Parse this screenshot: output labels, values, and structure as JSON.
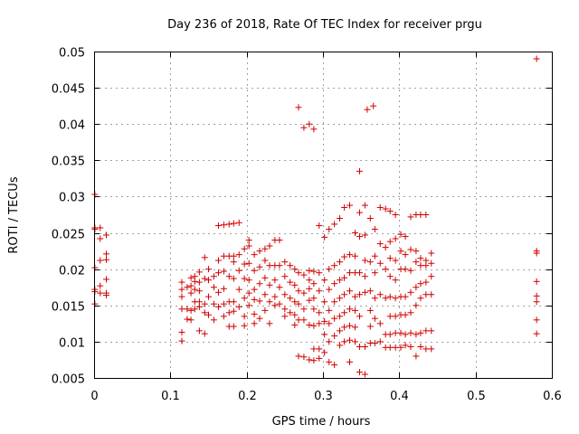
{
  "chart_data": {
    "type": "scatter",
    "title": "Day 236 of 2018, Rate Of TEC Index for receiver prgu",
    "xlabel": "GPS time / hours",
    "ylabel": "ROTI / TECUs",
    "xlim": [
      0,
      0.6
    ],
    "ylim": [
      0.005,
      0.05
    ],
    "xticks": [
      0,
      0.1,
      0.2,
      0.3,
      0.4,
      0.5,
      0.6
    ],
    "xtick_labels": [
      "0",
      "0.1",
      "0.2",
      "0.3",
      "0.4",
      "0.5",
      "0.6"
    ],
    "yticks": [
      0.005,
      0.01,
      0.015,
      0.02,
      0.025,
      0.03,
      0.035,
      0.04,
      0.045,
      0.05
    ],
    "ytick_labels": [
      "0.005",
      "0.01",
      "0.015",
      "0.02",
      "0.025",
      "0.03",
      "0.035",
      "0.04",
      "0.045",
      "0.05"
    ],
    "grid": true,
    "marker": "+",
    "series_color": "#d00000",
    "points": [
      [
        0.001,
        0.0303
      ],
      [
        0.001,
        0.0257
      ],
      [
        0.001,
        0.0255
      ],
      [
        0.001,
        0.0202
      ],
      [
        0.001,
        0.0172
      ],
      [
        0.001,
        0.0169
      ],
      [
        0.001,
        0.0152
      ],
      [
        0.008,
        0.0257
      ],
      [
        0.008,
        0.0242
      ],
      [
        0.008,
        0.0212
      ],
      [
        0.008,
        0.0177
      ],
      [
        0.008,
        0.0167
      ],
      [
        0.016,
        0.0247
      ],
      [
        0.016,
        0.0221
      ],
      [
        0.016,
        0.0213
      ],
      [
        0.016,
        0.0186
      ],
      [
        0.016,
        0.0167
      ],
      [
        0.016,
        0.0164
      ],
      [
        0.115,
        0.0182
      ],
      [
        0.115,
        0.0172
      ],
      [
        0.115,
        0.0162
      ],
      [
        0.115,
        0.0145
      ],
      [
        0.115,
        0.0113
      ],
      [
        0.115,
        0.0101
      ],
      [
        0.122,
        0.0175
      ],
      [
        0.122,
        0.0145
      ],
      [
        0.122,
        0.0131
      ],
      [
        0.127,
        0.0188
      ],
      [
        0.127,
        0.0177
      ],
      [
        0.127,
        0.0167
      ],
      [
        0.127,
        0.0143
      ],
      [
        0.127,
        0.013
      ],
      [
        0.132,
        0.019
      ],
      [
        0.132,
        0.0183
      ],
      [
        0.132,
        0.0172
      ],
      [
        0.132,
        0.0155
      ],
      [
        0.132,
        0.0145
      ],
      [
        0.138,
        0.0196
      ],
      [
        0.138,
        0.0182
      ],
      [
        0.138,
        0.017
      ],
      [
        0.138,
        0.0155
      ],
      [
        0.138,
        0.0148
      ],
      [
        0.138,
        0.0115
      ],
      [
        0.145,
        0.0216
      ],
      [
        0.145,
        0.0187
      ],
      [
        0.145,
        0.0152
      ],
      [
        0.145,
        0.014
      ],
      [
        0.145,
        0.0111
      ],
      [
        0.15,
        0.02
      ],
      [
        0.15,
        0.0185
      ],
      [
        0.15,
        0.0162
      ],
      [
        0.15,
        0.0137
      ],
      [
        0.157,
        0.019
      ],
      [
        0.157,
        0.0175
      ],
      [
        0.157,
        0.0152
      ],
      [
        0.157,
        0.013
      ],
      [
        0.163,
        0.0212
      ],
      [
        0.163,
        0.0195
      ],
      [
        0.163,
        0.0168
      ],
      [
        0.163,
        0.0148
      ],
      [
        0.163,
        0.026
      ],
      [
        0.17,
        0.0218
      ],
      [
        0.17,
        0.0197
      ],
      [
        0.17,
        0.0173
      ],
      [
        0.17,
        0.0152
      ],
      [
        0.17,
        0.0135
      ],
      [
        0.17,
        0.0261
      ],
      [
        0.177,
        0.0218
      ],
      [
        0.177,
        0.019
      ],
      [
        0.177,
        0.0155
      ],
      [
        0.177,
        0.014
      ],
      [
        0.177,
        0.0121
      ],
      [
        0.177,
        0.0262
      ],
      [
        0.183,
        0.0218
      ],
      [
        0.183,
        0.021
      ],
      [
        0.183,
        0.0187
      ],
      [
        0.183,
        0.0155
      ],
      [
        0.183,
        0.0142
      ],
      [
        0.183,
        0.0121
      ],
      [
        0.183,
        0.0263
      ],
      [
        0.19,
        0.022
      ],
      [
        0.19,
        0.0198
      ],
      [
        0.19,
        0.0172
      ],
      [
        0.19,
        0.0148
      ],
      [
        0.19,
        0.0264
      ],
      [
        0.197,
        0.0228
      ],
      [
        0.197,
        0.0207
      ],
      [
        0.197,
        0.0187
      ],
      [
        0.197,
        0.016
      ],
      [
        0.197,
        0.0135
      ],
      [
        0.197,
        0.0122
      ],
      [
        0.203,
        0.024
      ],
      [
        0.203,
        0.0232
      ],
      [
        0.203,
        0.0208
      ],
      [
        0.203,
        0.0185
      ],
      [
        0.203,
        0.0167
      ],
      [
        0.203,
        0.015
      ],
      [
        0.21,
        0.022
      ],
      [
        0.21,
        0.0198
      ],
      [
        0.21,
        0.0172
      ],
      [
        0.21,
        0.0158
      ],
      [
        0.21,
        0.0138
      ],
      [
        0.21,
        0.0125
      ],
      [
        0.217,
        0.0225
      ],
      [
        0.217,
        0.0203
      ],
      [
        0.217,
        0.018
      ],
      [
        0.217,
        0.0156
      ],
      [
        0.217,
        0.0132
      ],
      [
        0.224,
        0.0228
      ],
      [
        0.224,
        0.0212
      ],
      [
        0.224,
        0.0188
      ],
      [
        0.224,
        0.0165
      ],
      [
        0.224,
        0.0143
      ],
      [
        0.23,
        0.0232
      ],
      [
        0.23,
        0.0205
      ],
      [
        0.23,
        0.0178
      ],
      [
        0.23,
        0.0155
      ],
      [
        0.23,
        0.0125
      ],
      [
        0.237,
        0.024
      ],
      [
        0.237,
        0.0205
      ],
      [
        0.237,
        0.0185
      ],
      [
        0.237,
        0.0162
      ],
      [
        0.237,
        0.015
      ],
      [
        0.243,
        0.024
      ],
      [
        0.243,
        0.0205
      ],
      [
        0.243,
        0.0175
      ],
      [
        0.243,
        0.0152
      ],
      [
        0.25,
        0.021
      ],
      [
        0.25,
        0.019
      ],
      [
        0.25,
        0.0165
      ],
      [
        0.25,
        0.0145
      ],
      [
        0.25,
        0.0135
      ],
      [
        0.257,
        0.0205
      ],
      [
        0.257,
        0.0182
      ],
      [
        0.257,
        0.016
      ],
      [
        0.257,
        0.014
      ],
      [
        0.263,
        0.02
      ],
      [
        0.263,
        0.0178
      ],
      [
        0.263,
        0.0155
      ],
      [
        0.263,
        0.0137
      ],
      [
        0.263,
        0.0123
      ],
      [
        0.268,
        0.0423
      ],
      [
        0.268,
        0.0195
      ],
      [
        0.268,
        0.017
      ],
      [
        0.268,
        0.0152
      ],
      [
        0.268,
        0.013
      ],
      [
        0.268,
        0.008
      ],
      [
        0.275,
        0.0395
      ],
      [
        0.275,
        0.0192
      ],
      [
        0.275,
        0.0167
      ],
      [
        0.275,
        0.0145
      ],
      [
        0.275,
        0.013
      ],
      [
        0.275,
        0.0079
      ],
      [
        0.282,
        0.04
      ],
      [
        0.282,
        0.0198
      ],
      [
        0.282,
        0.0185
      ],
      [
        0.282,
        0.0173
      ],
      [
        0.282,
        0.0157
      ],
      [
        0.282,
        0.0123
      ],
      [
        0.282,
        0.0075
      ],
      [
        0.288,
        0.0393
      ],
      [
        0.288,
        0.0197
      ],
      [
        0.288,
        0.018
      ],
      [
        0.288,
        0.016
      ],
      [
        0.288,
        0.0145
      ],
      [
        0.288,
        0.0122
      ],
      [
        0.288,
        0.009
      ],
      [
        0.288,
        0.0074
      ],
      [
        0.295,
        0.026
      ],
      [
        0.295,
        0.0195
      ],
      [
        0.295,
        0.017
      ],
      [
        0.295,
        0.014
      ],
      [
        0.295,
        0.0125
      ],
      [
        0.295,
        0.009
      ],
      [
        0.295,
        0.0077
      ],
      [
        0.302,
        0.0244
      ],
      [
        0.302,
        0.0185
      ],
      [
        0.302,
        0.0155
      ],
      [
        0.302,
        0.0128
      ],
      [
        0.302,
        0.011
      ],
      [
        0.302,
        0.0085
      ],
      [
        0.308,
        0.0255
      ],
      [
        0.308,
        0.02
      ],
      [
        0.308,
        0.0172
      ],
      [
        0.308,
        0.0143
      ],
      [
        0.308,
        0.0125
      ],
      [
        0.308,
        0.01
      ],
      [
        0.308,
        0.0072
      ],
      [
        0.315,
        0.0262
      ],
      [
        0.315,
        0.0205
      ],
      [
        0.315,
        0.018
      ],
      [
        0.315,
        0.0155
      ],
      [
        0.315,
        0.0132
      ],
      [
        0.315,
        0.0108
      ],
      [
        0.315,
        0.0068
      ],
      [
        0.322,
        0.027
      ],
      [
        0.322,
        0.021
      ],
      [
        0.322,
        0.0185
      ],
      [
        0.322,
        0.016
      ],
      [
        0.322,
        0.0135
      ],
      [
        0.322,
        0.0115
      ],
      [
        0.322,
        0.0095
      ],
      [
        0.328,
        0.0285
      ],
      [
        0.328,
        0.0217
      ],
      [
        0.328,
        0.0188
      ],
      [
        0.328,
        0.0165
      ],
      [
        0.328,
        0.014
      ],
      [
        0.328,
        0.012
      ],
      [
        0.328,
        0.01
      ],
      [
        0.335,
        0.0288
      ],
      [
        0.335,
        0.022
      ],
      [
        0.335,
        0.0195
      ],
      [
        0.335,
        0.017
      ],
      [
        0.335,
        0.0145
      ],
      [
        0.335,
        0.0122
      ],
      [
        0.335,
        0.0102
      ],
      [
        0.335,
        0.0072
      ],
      [
        0.342,
        0.025
      ],
      [
        0.342,
        0.0218
      ],
      [
        0.342,
        0.0195
      ],
      [
        0.342,
        0.0162
      ],
      [
        0.342,
        0.0143
      ],
      [
        0.342,
        0.012
      ],
      [
        0.342,
        0.01
      ],
      [
        0.348,
        0.0335
      ],
      [
        0.348,
        0.0278
      ],
      [
        0.348,
        0.0245
      ],
      [
        0.348,
        0.0195
      ],
      [
        0.348,
        0.0165
      ],
      [
        0.348,
        0.0135
      ],
      [
        0.348,
        0.0093
      ],
      [
        0.348,
        0.0058
      ],
      [
        0.355,
        0.0288
      ],
      [
        0.355,
        0.0247
      ],
      [
        0.355,
        0.0212
      ],
      [
        0.355,
        0.019
      ],
      [
        0.355,
        0.0168
      ],
      [
        0.355,
        0.0093
      ],
      [
        0.355,
        0.0055
      ],
      [
        0.358,
        0.042
      ],
      [
        0.362,
        0.027
      ],
      [
        0.362,
        0.021
      ],
      [
        0.362,
        0.017
      ],
      [
        0.362,
        0.0143
      ],
      [
        0.362,
        0.0121
      ],
      [
        0.362,
        0.0098
      ],
      [
        0.366,
        0.0425
      ],
      [
        0.368,
        0.0255
      ],
      [
        0.368,
        0.0218
      ],
      [
        0.368,
        0.0195
      ],
      [
        0.368,
        0.016
      ],
      [
        0.368,
        0.0132
      ],
      [
        0.368,
        0.0098
      ],
      [
        0.375,
        0.0285
      ],
      [
        0.375,
        0.0235
      ],
      [
        0.375,
        0.0208
      ],
      [
        0.375,
        0.0165
      ],
      [
        0.375,
        0.0125
      ],
      [
        0.375,
        0.01
      ],
      [
        0.382,
        0.0283
      ],
      [
        0.382,
        0.023
      ],
      [
        0.382,
        0.02
      ],
      [
        0.382,
        0.016
      ],
      [
        0.382,
        0.011
      ],
      [
        0.382,
        0.0092
      ],
      [
        0.388,
        0.028
      ],
      [
        0.388,
        0.0238
      ],
      [
        0.388,
        0.0215
      ],
      [
        0.388,
        0.019
      ],
      [
        0.388,
        0.0162
      ],
      [
        0.388,
        0.0135
      ],
      [
        0.388,
        0.011
      ],
      [
        0.388,
        0.0092
      ],
      [
        0.395,
        0.0275
      ],
      [
        0.395,
        0.0242
      ],
      [
        0.395,
        0.0212
      ],
      [
        0.395,
        0.0185
      ],
      [
        0.395,
        0.016
      ],
      [
        0.395,
        0.0135
      ],
      [
        0.395,
        0.0112
      ],
      [
        0.395,
        0.0092
      ],
      [
        0.402,
        0.0248
      ],
      [
        0.402,
        0.0225
      ],
      [
        0.402,
        0.02
      ],
      [
        0.402,
        0.0162
      ],
      [
        0.402,
        0.0137
      ],
      [
        0.402,
        0.0112
      ],
      [
        0.402,
        0.0092
      ],
      [
        0.408,
        0.0245
      ],
      [
        0.408,
        0.022
      ],
      [
        0.408,
        0.02
      ],
      [
        0.408,
        0.0162
      ],
      [
        0.408,
        0.0137
      ],
      [
        0.408,
        0.011
      ],
      [
        0.408,
        0.0095
      ],
      [
        0.415,
        0.0272
      ],
      [
        0.415,
        0.0227
      ],
      [
        0.415,
        0.0198
      ],
      [
        0.415,
        0.0168
      ],
      [
        0.415,
        0.014
      ],
      [
        0.415,
        0.0112
      ],
      [
        0.415,
        0.0093
      ],
      [
        0.422,
        0.0275
      ],
      [
        0.422,
        0.0225
      ],
      [
        0.422,
        0.021
      ],
      [
        0.422,
        0.0175
      ],
      [
        0.422,
        0.015
      ],
      [
        0.422,
        0.011
      ],
      [
        0.422,
        0.008
      ],
      [
        0.428,
        0.0275
      ],
      [
        0.428,
        0.0215
      ],
      [
        0.428,
        0.0205
      ],
      [
        0.428,
        0.018
      ],
      [
        0.428,
        0.016
      ],
      [
        0.428,
        0.0112
      ],
      [
        0.428,
        0.0093
      ],
      [
        0.435,
        0.0275
      ],
      [
        0.435,
        0.0212
      ],
      [
        0.435,
        0.0205
      ],
      [
        0.435,
        0.0182
      ],
      [
        0.435,
        0.0165
      ],
      [
        0.435,
        0.0115
      ],
      [
        0.435,
        0.009
      ],
      [
        0.442,
        0.0222
      ],
      [
        0.442,
        0.0208
      ],
      [
        0.442,
        0.019
      ],
      [
        0.442,
        0.0165
      ],
      [
        0.442,
        0.0115
      ],
      [
        0.442,
        0.009
      ],
      [
        0.58,
        0.049
      ],
      [
        0.58,
        0.0225
      ],
      [
        0.58,
        0.0222
      ],
      [
        0.58,
        0.0183
      ],
      [
        0.58,
        0.0163
      ],
      [
        0.58,
        0.0155
      ],
      [
        0.58,
        0.013
      ],
      [
        0.58,
        0.0111
      ]
    ]
  }
}
